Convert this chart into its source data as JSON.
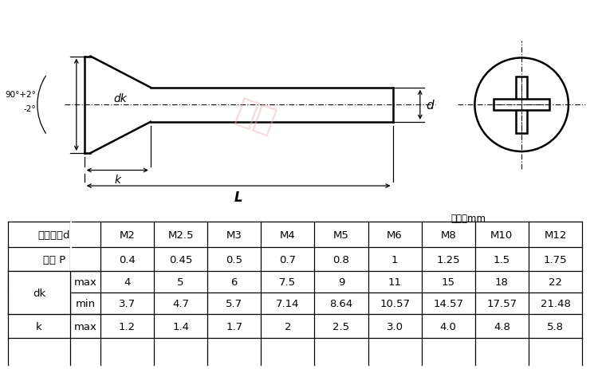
{
  "unit_label": "单位：mm",
  "bg_color": "#ffffff",
  "table": {
    "rows": [
      {
        "label1": "螺纹规格d",
        "label2": "",
        "values": [
          "M2",
          "M2.5",
          "M3",
          "M4",
          "M5",
          "M6",
          "M8",
          "M10",
          "M12"
        ]
      },
      {
        "label1": "螺距 P",
        "label2": "",
        "values": [
          "0.4",
          "0.45",
          "0.5",
          "0.7",
          "0.8",
          "1",
          "1.25",
          "1.5",
          "1.75"
        ]
      },
      {
        "label1": "dk",
        "label2": "max",
        "values": [
          "4",
          "5",
          "6",
          "7.5",
          "9",
          "11",
          "15",
          "18",
          "22"
        ]
      },
      {
        "label1": "",
        "label2": "min",
        "values": [
          "3.7",
          "4.7",
          "5.7",
          "7.14",
          "8.64",
          "10.57",
          "14.57",
          "17.57",
          "21.48"
        ]
      },
      {
        "label1": "k",
        "label2": "max",
        "values": [
          "1.2",
          "1.4",
          "1.7",
          "2",
          "2.5",
          "3.0",
          "4.0",
          "4.8",
          "5.8"
        ]
      }
    ]
  },
  "diagram": {
    "angle_label_top": "90°+2°",
    "angle_label_bot": "-2°",
    "dk_label": "dk",
    "d_label": "d",
    "k_label": "k",
    "L_label": "L",
    "watermark": "华人"
  },
  "line_color": "#000000",
  "text_color": "#000000",
  "table_line_color": "#000000"
}
